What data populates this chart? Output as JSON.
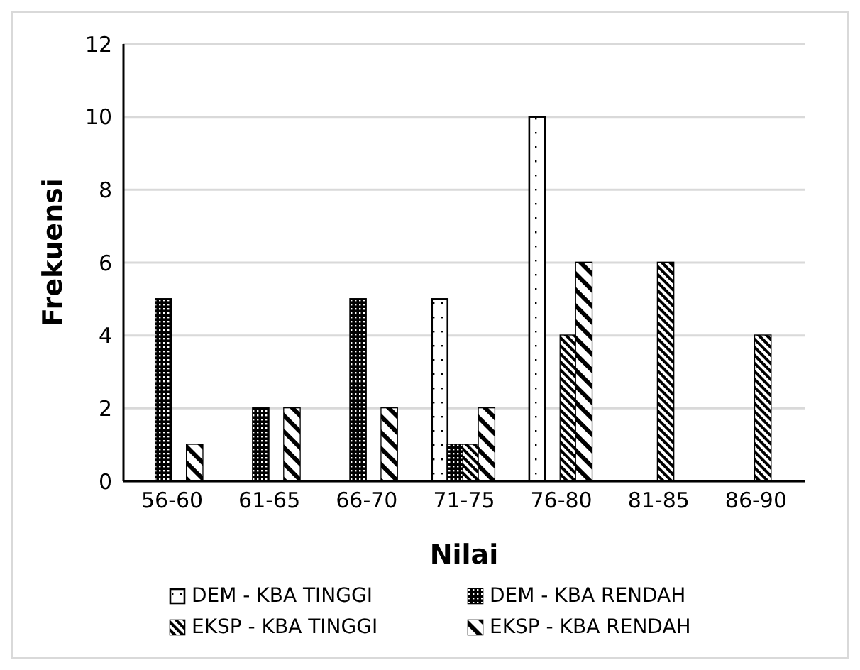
{
  "chart_data": {
    "type": "bar",
    "xlabel": "Nilai",
    "ylabel": "Frekuensi",
    "categories": [
      "56-60",
      "61-65",
      "66-70",
      "71-75",
      "76-80",
      "81-85",
      "86-90"
    ],
    "series": [
      {
        "name": "DEM - KBA TINGGI",
        "color": "#ffffff",
        "values": [
          0,
          0,
          0,
          5,
          10,
          0,
          0
        ]
      },
      {
        "name": "DEM - KBA RENDAH",
        "color": "#000000",
        "values": [
          5,
          2,
          5,
          1,
          0,
          0,
          0
        ]
      },
      {
        "name": "EKSP - KBA TINGGI",
        "color": "#000000",
        "values": [
          0,
          0,
          0,
          1,
          4,
          6,
          4
        ]
      },
      {
        "name": "EKSP - KBA RENDAH",
        "color": "#000000",
        "values": [
          1,
          2,
          2,
          2,
          6,
          0,
          0
        ]
      }
    ],
    "ylim": [
      0,
      12
    ],
    "yticks": [
      0,
      2,
      4,
      6,
      8,
      10,
      12
    ],
    "grid": "y",
    "legend": "bottom"
  }
}
